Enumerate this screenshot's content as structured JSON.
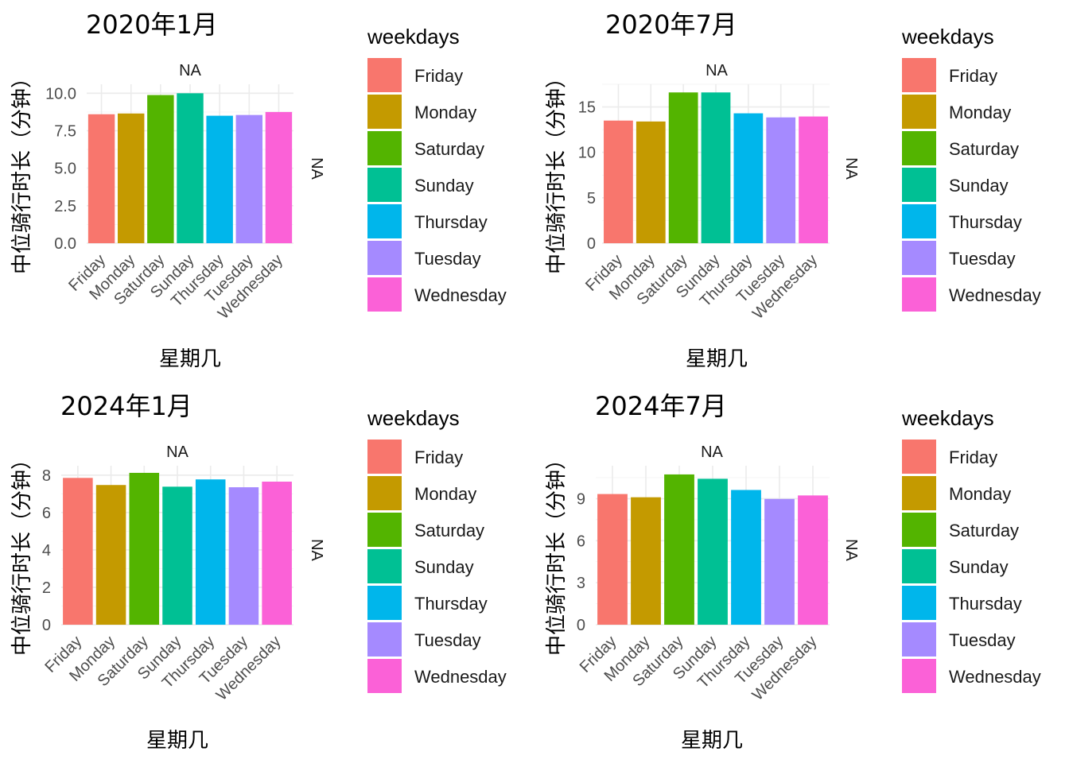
{
  "colors": {
    "Friday": "#F8766D",
    "Monday": "#C49A00",
    "Saturday": "#53B400",
    "Sunday": "#00C094",
    "Thursday": "#00B6EB",
    "Tuesday": "#A58AFF",
    "Wednesday": "#FB61D7"
  },
  "chart_data": [
    {
      "type": "bar",
      "title": "2020年1月",
      "strip_top": "NA",
      "strip_right": "NA",
      "xlabel": "星期几",
      "ylabel": "中位骑行时长（分钟）",
      "categories": [
        "Friday",
        "Monday",
        "Saturday",
        "Sunday",
        "Thursday",
        "Tuesday",
        "Wednesday"
      ],
      "values": [
        8.6,
        8.65,
        9.88,
        10.0,
        8.5,
        8.55,
        8.75
      ],
      "ylim": [
        0,
        10.6
      ],
      "yticks": [
        0,
        2.5,
        5,
        7.5,
        10
      ],
      "ytick_labels": [
        "0.0",
        "2.5",
        "5.0",
        "7.5",
        "10.0"
      ],
      "legend_title": "weekdays",
      "legend": [
        "Friday",
        "Monday",
        "Saturday",
        "Sunday",
        "Thursday",
        "Tuesday",
        "Wednesday"
      ]
    },
    {
      "type": "bar",
      "title": "2020年7月",
      "strip_top": "NA",
      "strip_right": "NA",
      "xlabel": "星期几",
      "ylabel": "中位骑行时长（分钟）",
      "categories": [
        "Friday",
        "Monday",
        "Saturday",
        "Sunday",
        "Thursday",
        "Tuesday",
        "Wednesday"
      ],
      "values": [
        13.5,
        13.4,
        16.6,
        16.6,
        14.3,
        13.85,
        13.95
      ],
      "ylim": [
        0,
        17.5
      ],
      "yticks": [
        0,
        5,
        10,
        15
      ],
      "ytick_labels": [
        "0",
        "5",
        "10",
        "15"
      ],
      "legend_title": "weekdays",
      "legend": [
        "Friday",
        "Monday",
        "Saturday",
        "Sunday",
        "Thursday",
        "Tuesday",
        "Wednesday"
      ]
    },
    {
      "type": "bar",
      "title": "2024年1月",
      "strip_top": "NA",
      "strip_right": "NA",
      "xlabel": "星期几",
      "ylabel": "中位骑行时长（分钟）",
      "categories": [
        "Friday",
        "Monday",
        "Saturday",
        "Sunday",
        "Thursday",
        "Tuesday",
        "Wednesday"
      ],
      "values": [
        7.85,
        7.47,
        8.12,
        7.38,
        7.77,
        7.35,
        7.65
      ],
      "ylim": [
        0,
        8.5
      ],
      "yticks": [
        0,
        2,
        4,
        6,
        8
      ],
      "ytick_labels": [
        "0",
        "2",
        "4",
        "6",
        "8"
      ],
      "legend_title": "weekdays",
      "legend": [
        "Friday",
        "Monday",
        "Saturday",
        "Sunday",
        "Thursday",
        "Tuesday",
        "Wednesday"
      ]
    },
    {
      "type": "bar",
      "title": "2024年7月",
      "strip_top": "NA",
      "strip_right": "NA",
      "xlabel": "星期几",
      "ylabel": "中位骑行时长（分钟）",
      "categories": [
        "Friday",
        "Monday",
        "Saturday",
        "Sunday",
        "Thursday",
        "Tuesday",
        "Wednesday"
      ],
      "values": [
        9.33,
        9.1,
        10.73,
        10.42,
        9.62,
        8.98,
        9.23
      ],
      "ylim": [
        0,
        11.35
      ],
      "yticks": [
        0,
        3,
        6,
        9
      ],
      "ytick_labels": [
        "0",
        "3",
        "6",
        "9"
      ],
      "legend_title": "weekdays",
      "legend": [
        "Friday",
        "Monday",
        "Saturday",
        "Sunday",
        "Thursday",
        "Tuesday",
        "Wednesday"
      ]
    }
  ]
}
